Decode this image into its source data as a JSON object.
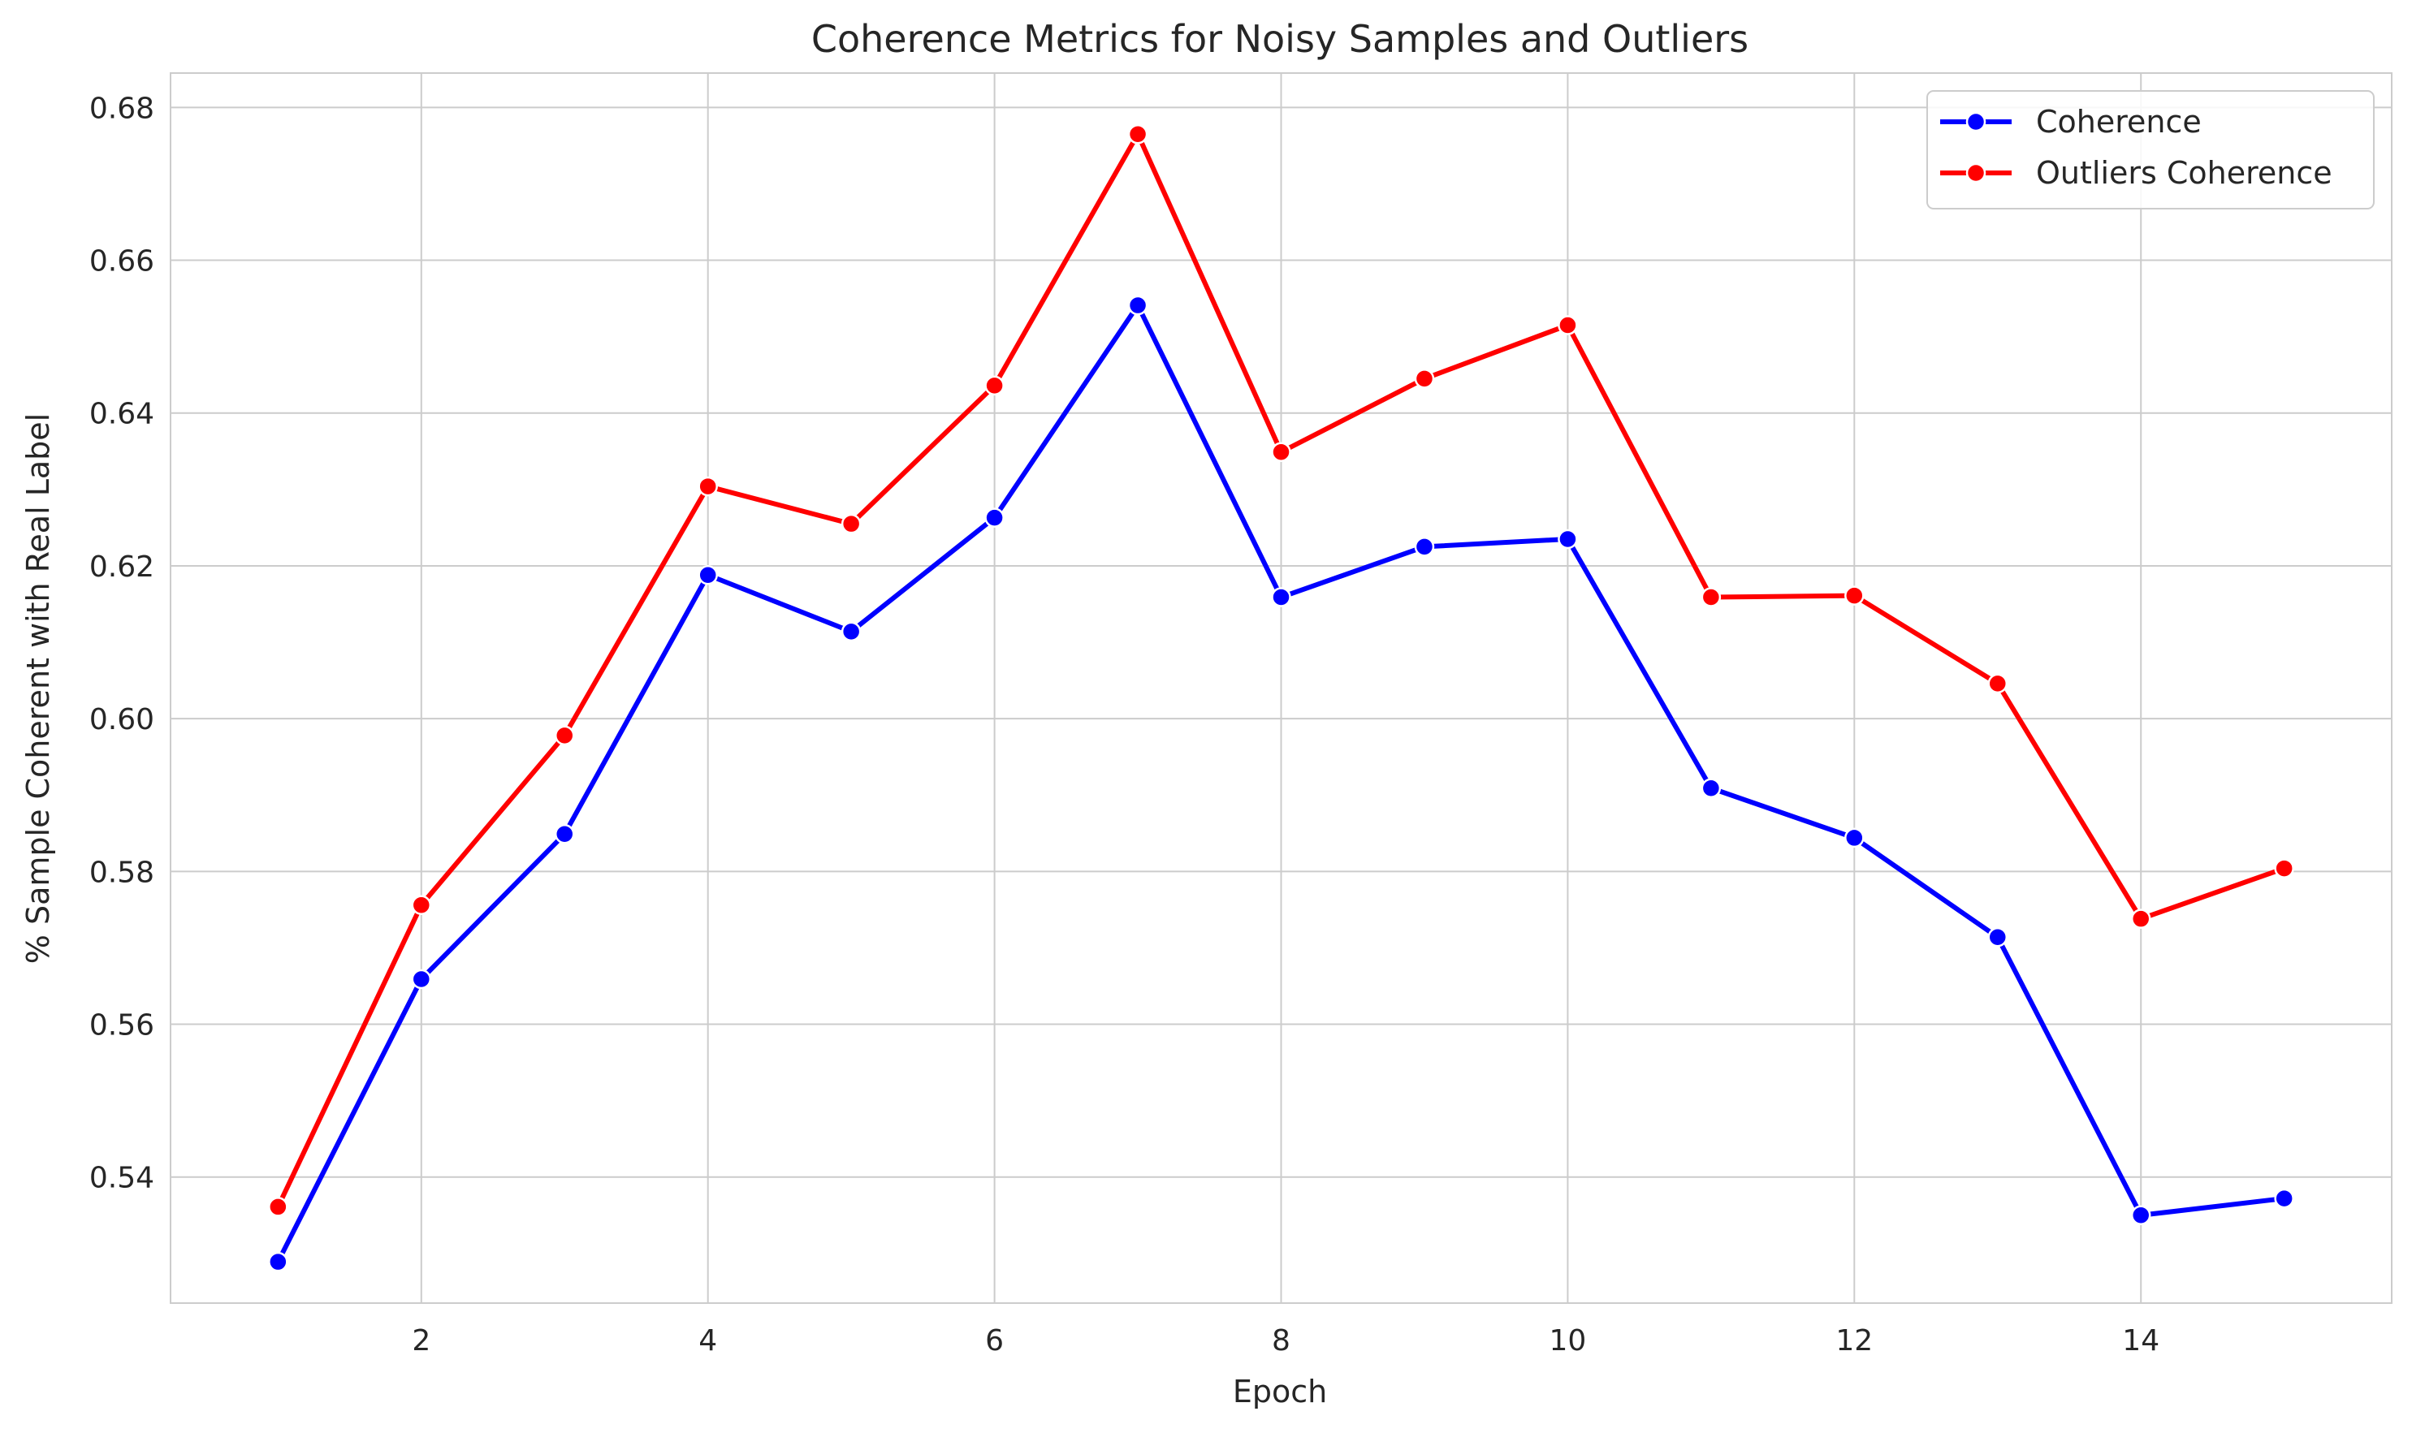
{
  "chart_data": {
    "type": "line",
    "title": "Coherence Metrics for Noisy Samples and Outliers",
    "xlabel": "Epoch",
    "ylabel": "% Sample Coherent with Real Label",
    "xlim": [
      0.25,
      15.75
    ],
    "ylim": [
      0.5235,
      0.6845
    ],
    "xticks": [
      2,
      4,
      6,
      8,
      10,
      12,
      14
    ],
    "yticks": [
      0.54,
      0.56,
      0.58,
      0.6,
      0.62,
      0.64,
      0.66,
      0.68
    ],
    "ytick_labels": [
      "0.54",
      "0.56",
      "0.58",
      "0.60",
      "0.62",
      "0.64",
      "0.66",
      "0.68"
    ],
    "grid": true,
    "legend_position": "upper right",
    "x": [
      1,
      2,
      3,
      4,
      5,
      6,
      7,
      8,
      9,
      10,
      11,
      12,
      13,
      14,
      15
    ],
    "series": [
      {
        "name": "Coherence",
        "color": "#0000ff",
        "values": [
          0.5289,
          0.5659,
          0.5849,
          0.6188,
          0.6114,
          0.6263,
          0.6541,
          0.6159,
          0.6225,
          0.6235,
          0.5909,
          0.5844,
          0.5714,
          0.535,
          0.5372
        ]
      },
      {
        "name": "Outliers Coherence",
        "color": "#ff0000",
        "values": [
          0.5361,
          0.5756,
          0.5978,
          0.6304,
          0.6255,
          0.6436,
          0.6765,
          0.6349,
          0.6445,
          0.6515,
          0.6159,
          0.6161,
          0.6046,
          0.5738,
          0.5804
        ]
      }
    ]
  }
}
